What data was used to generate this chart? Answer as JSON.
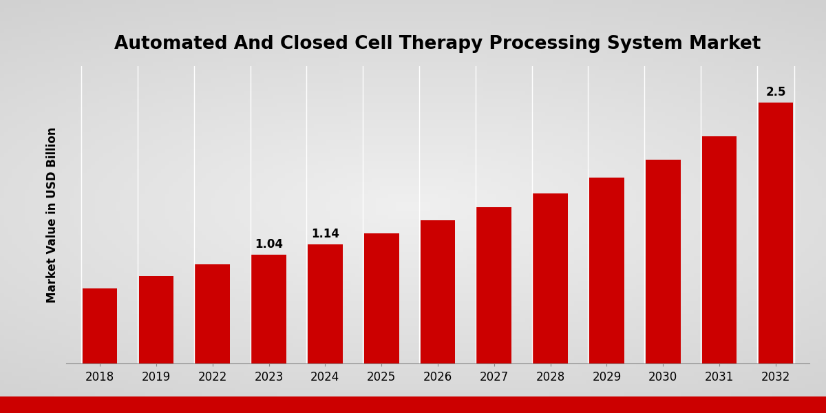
{
  "title": "Automated And Closed Cell Therapy Processing System Market",
  "ylabel": "Market Value in USD Billion",
  "categories": [
    "2018",
    "2019",
    "2022",
    "2023",
    "2024",
    "2025",
    "2026",
    "2027",
    "2028",
    "2029",
    "2030",
    "2031",
    "2032"
  ],
  "values": [
    0.72,
    0.84,
    0.95,
    1.04,
    1.14,
    1.25,
    1.37,
    1.5,
    1.63,
    1.78,
    1.95,
    2.18,
    2.5
  ],
  "bar_color": "#CC0000",
  "bg_light": "#F0F0F0",
  "bg_dark": "#D8D8D8",
  "title_fontsize": 19,
  "label_fontsize": 12,
  "tick_fontsize": 12,
  "annot_fontsize": 12,
  "annotations": {
    "2023": "1.04",
    "2024": "1.14",
    "2032": "2.5"
  },
  "ylim": [
    0,
    2.85
  ],
  "bottom_bar_color": "#CC0000",
  "white_line_color": "#FFFFFF"
}
